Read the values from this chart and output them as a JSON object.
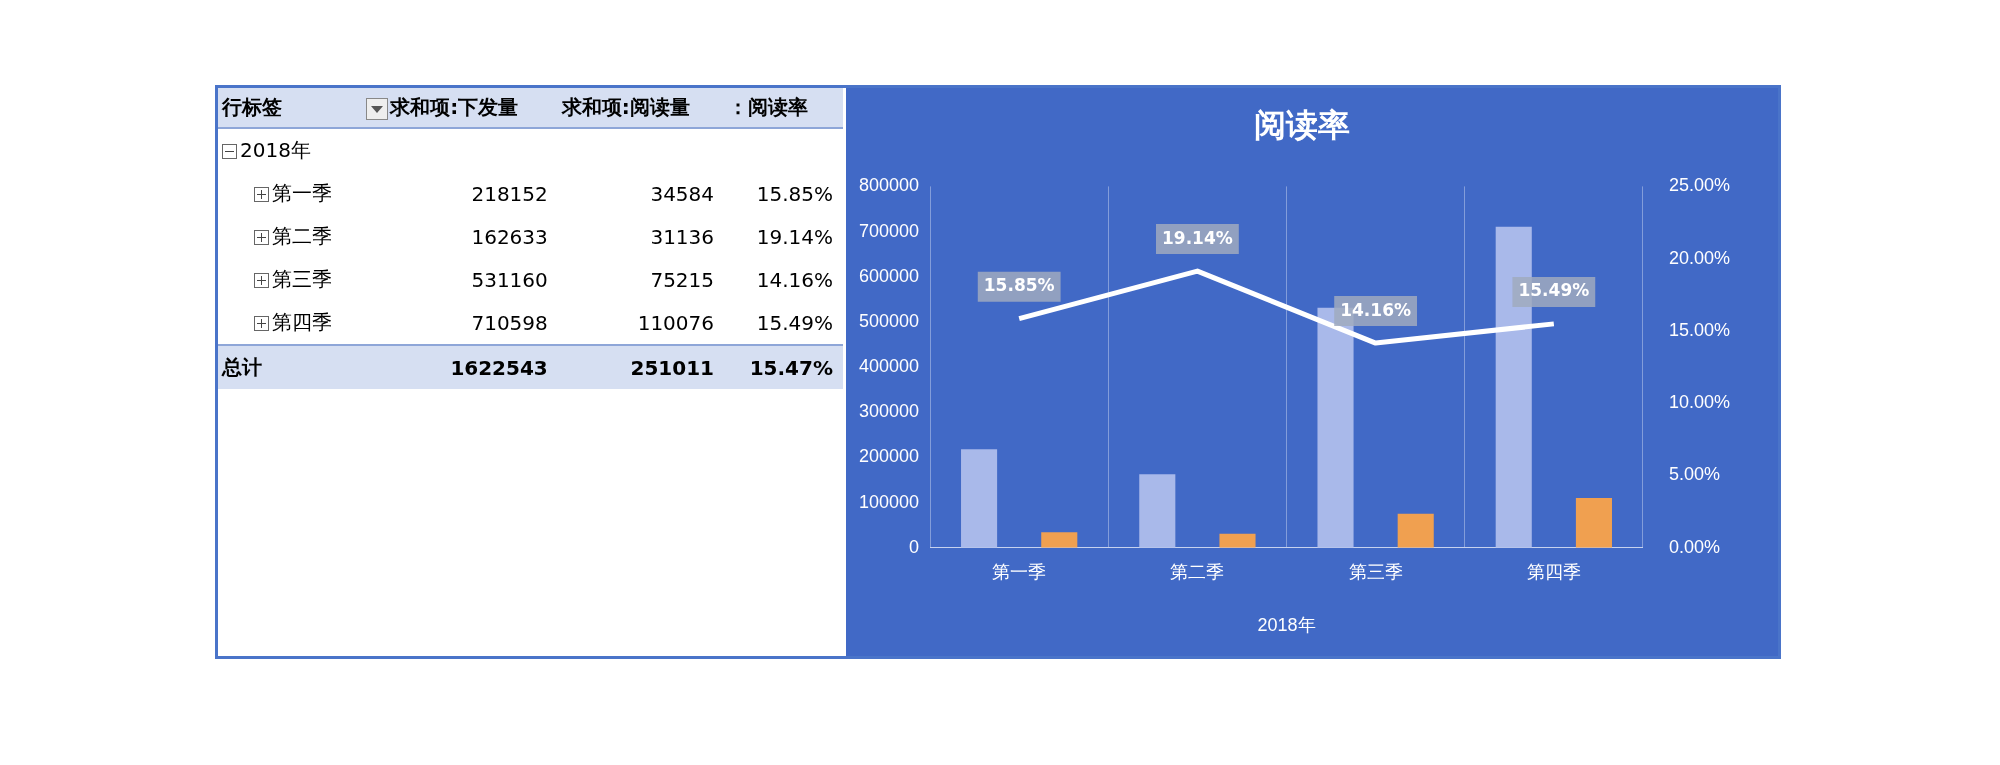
{
  "chart_data": [
    {
      "type": "other",
      "legend_title": "行标签",
      "categories": [
        "2018年",
        "第一季",
        "第二季",
        "第三季",
        "第四季",
        "总计"
      ],
      "series": [
        {
          "name": "求和项:下发量",
          "values": [
            null,
            218152,
            162633,
            531160,
            710598,
            1622543
          ],
          "value_labels": [
            null,
            "218152",
            "162633",
            "531160",
            "710598",
            "1622543"
          ]
        },
        {
          "name": "求和项:阅读量",
          "values": [
            null,
            34584,
            31136,
            75215,
            110076,
            251011
          ],
          "value_labels": [
            null,
            "34584",
            "31136",
            "75215",
            "110076",
            "251011"
          ]
        },
        {
          "name": "：阅读率",
          "values": [
            null,
            15.85,
            19.14,
            14.16,
            15.49,
            15.47
          ],
          "value_labels": [
            null,
            "15.85%",
            "19.14%",
            "14.16%",
            "15.49%",
            "15.47%"
          ]
        }
      ]
    },
    {
      "type": "bar",
      "title": "阅读率",
      "xlabel": "2018年",
      "categories": [
        "第一季",
        "第二季",
        "第三季",
        "第四季"
      ],
      "series": [
        {
          "color": "#a9b9ea",
          "values": [
            218152,
            162633,
            531160,
            710598
          ]
        },
        {
          "color": "#f0a050",
          "values": [
            34584,
            31136,
            75215,
            110076
          ]
        },
        {
          "type": "line",
          "axis": "y2",
          "color": "#ffffff",
          "values": [
            15.85,
            19.14,
            14.16,
            15.49
          ],
          "value_labels": [
            "15.85%",
            "19.14%",
            "14.16%",
            "15.49%"
          ]
        }
      ],
      "ylim": [
        0,
        800000
      ],
      "yticks": [
        0,
        100000,
        200000,
        300000,
        400000,
        500000,
        600000,
        700000,
        800000
      ],
      "y2lim": [
        0,
        25
      ],
      "y2ticks": [
        {
          "value": 0,
          "label": "0.00%"
        },
        {
          "value": 5,
          "label": "5.00%"
        },
        {
          "value": 10,
          "label": "10.00%"
        },
        {
          "value": 15,
          "label": "15.00%"
        },
        {
          "value": 20,
          "label": "20.00%"
        },
        {
          "value": 25,
          "label": "25.00%"
        }
      ],
      "grid": "x",
      "legend": false,
      "marker": "none",
      "line_style": "solid"
    }
  ]
}
